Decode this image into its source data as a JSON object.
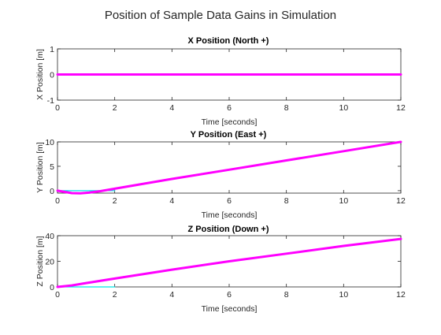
{
  "figure": {
    "title": "Position of Sample Data Gains in Simulation"
  },
  "chart_data": [
    {
      "type": "line",
      "title": "X Position (North +)",
      "xlabel": "Time [seconds]",
      "ylabel": "X Position [m]",
      "xlim": [
        0,
        12
      ],
      "ylim": [
        -1,
        1
      ],
      "xticks": [
        0,
        2,
        4,
        6,
        8,
        10,
        12
      ],
      "yticks": [
        -1,
        0,
        1
      ],
      "series": [
        {
          "color": "#00e5e5",
          "width": 1.2,
          "x": [
            0,
            12
          ],
          "y": [
            0,
            0
          ]
        },
        {
          "color": "#ff00ff",
          "width": 3,
          "x": [
            0,
            12
          ],
          "y": [
            0,
            0
          ]
        }
      ]
    },
    {
      "type": "line",
      "title": "Y Position (East +)",
      "xlabel": "Time [seconds]",
      "ylabel": "Y Position [m]",
      "xlim": [
        0,
        12
      ],
      "ylim": [
        -0.5,
        10
      ],
      "xticks": [
        0,
        2,
        4,
        6,
        8,
        10,
        12
      ],
      "yticks": [
        0,
        5,
        10
      ],
      "series": [
        {
          "color": "#00e5e5",
          "width": 1.2,
          "x": [
            0,
            2
          ],
          "y": [
            0,
            0
          ]
        },
        {
          "color": "#ff00ff",
          "width": 3,
          "x": [
            0,
            0.2,
            0.5,
            0.8,
            1.1,
            1.5,
            2,
            4,
            6,
            8,
            10,
            12
          ],
          "y": [
            0,
            -0.2,
            -0.5,
            -0.55,
            -0.4,
            -0.1,
            0.4,
            2.4,
            4.3,
            6.2,
            8.1,
            10
          ]
        }
      ]
    },
    {
      "type": "line",
      "title": "Z Position (Down +)",
      "xlabel": "Time [seconds]",
      "ylabel": "Z Position [m]",
      "xlim": [
        0,
        12
      ],
      "ylim": [
        0,
        40
      ],
      "xticks": [
        0,
        2,
        4,
        6,
        8,
        10,
        12
      ],
      "yticks": [
        0,
        20,
        40
      ],
      "series": [
        {
          "color": "#00e5e5",
          "width": 1.2,
          "x": [
            0,
            2
          ],
          "y": [
            0,
            0
          ]
        },
        {
          "color": "#ff00ff",
          "width": 3,
          "x": [
            0,
            0.5,
            1,
            2,
            4,
            6,
            8,
            10,
            12
          ],
          "y": [
            0,
            1.2,
            3,
            6.5,
            13.5,
            20,
            26,
            32,
            37.5
          ]
        }
      ]
    }
  ]
}
